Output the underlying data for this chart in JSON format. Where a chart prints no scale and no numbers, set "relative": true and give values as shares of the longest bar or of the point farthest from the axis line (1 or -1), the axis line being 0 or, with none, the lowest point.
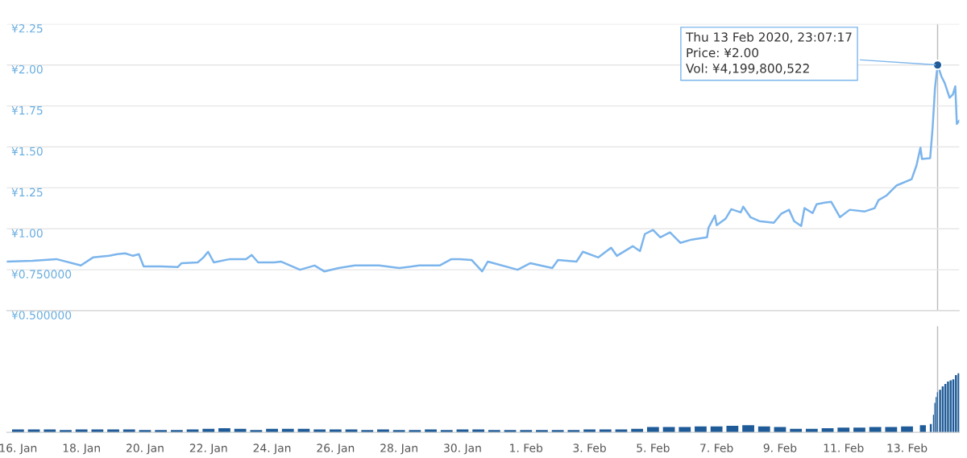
{
  "chart_data": [
    {
      "type": "line",
      "tick_labels": "y",
      "grid": "y",
      "marker": "none",
      "line_style": "solid",
      "xlim": [
        "2020-01-15T15:30",
        "2020-02-14T15:30"
      ],
      "ylim": [
        0.5,
        2.25
      ],
      "yticks": [
        {
          "value": 0.5,
          "label": "¥0.500000"
        },
        {
          "value": 0.75,
          "label": "¥0.750000"
        },
        {
          "value": 1.0,
          "label": "¥1.00"
        },
        {
          "value": 1.25,
          "label": "¥1.25"
        },
        {
          "value": 1.5,
          "label": "¥1.50"
        },
        {
          "value": 1.75,
          "label": "¥1.75"
        },
        {
          "value": 2.0,
          "label": "¥2.00"
        },
        {
          "value": 2.25,
          "label": "¥2.25"
        }
      ],
      "ref_lines": [
        {
          "axis": "x",
          "value": "2020-02-13T23:07",
          "label": null,
          "color": "#bbbbbb"
        }
      ],
      "annotations": [
        {
          "text": "Thu 13 Feb 2020, 23:07:17\nPrice: ¥2.00\nVol: ¥4,199,800,522",
          "x": "2020-02-13T23:07",
          "y": 2.0
        }
      ],
      "series": [
        {
          "color": "#7cb5ec",
          "x": [
            "2020-01-15T15:30",
            "2020-01-16T11:00",
            "2020-01-17T05:00",
            "2020-01-17T23:30",
            "2020-01-18T08:40",
            "2020-01-18T20:50",
            "2020-01-19T03:00",
            "2020-01-19T09:00",
            "2020-01-19T15:00",
            "2020-01-19T19:20",
            "2020-01-19T23:00",
            "2020-01-20T12:20",
            "2020-01-21T00:40",
            "2020-01-21T03:40",
            "2020-01-21T15:50",
            "2020-01-21T20:10",
            "2020-01-21T23:40",
            "2020-01-22T04:00",
            "2020-01-22T16:10",
            "2020-01-23T04:20",
            "2020-01-23T08:40",
            "2020-01-23T13:30",
            "2020-01-24T01:40",
            "2020-01-24T06:40",
            "2020-01-24T21:10",
            "2020-01-25T08:10",
            "2020-01-25T15:30",
            "2020-01-26T02:20",
            "2020-01-26T14:40",
            "2020-01-27T08:50",
            "2020-01-28T00:10",
            "2020-01-28T15:20",
            "2020-01-29T06:40",
            "2020-01-29T15:40",
            "2020-01-29T21:50",
            "2020-01-30T06:50",
            "2020-01-30T14:50",
            "2020-01-30T19:10",
            "2020-01-31T17:40",
            "2020-02-01T03:20",
            "2020-02-01T19:50",
            "2020-02-02T00:10",
            "2020-02-02T14:10",
            "2020-02-02T19:00",
            "2020-02-03T06:40",
            "2020-02-03T16:20",
            "2020-02-03T20:40",
            "2020-02-04T08:40",
            "2020-02-04T14:10",
            "2020-02-04T17:50",
            "2020-02-05T00:00",
            "2020-02-05T05:30",
            "2020-02-05T12:50",
            "2020-02-05T20:40",
            "2020-02-06T05:10",
            "2020-02-06T16:50",
            "2020-02-06T18:00",
            "2020-02-06T22:50",
            "2020-02-07T00:10",
            "2020-02-07T06:50",
            "2020-02-07T11:10",
            "2020-02-07T18:20",
            "2020-02-07T20:10",
            "2020-02-08T01:40",
            "2020-02-08T08:20",
            "2020-02-08T19:20",
            "2020-02-09T00:50",
            "2020-02-09T06:50",
            "2020-02-09T10:40",
            "2020-02-09T16:00",
            "2020-02-09T18:30",
            "2020-02-10T00:40",
            "2020-02-10T03:40",
            "2020-02-10T09:40",
            "2020-02-10T14:40",
            "2020-02-10T21:20",
            "2020-02-11T04:40",
            "2020-02-11T16:10",
            "2020-02-11T23:30",
            "2020-02-12T02:30",
            "2020-02-12T08:40",
            "2020-02-12T16:00",
            "2020-02-13T03:30",
            "2020-02-13T07:10",
            "2020-02-13T10:10",
            "2020-02-13T11:20",
            "2020-02-13T17:30",
            "2020-02-13T19:20",
            "2020-02-13T21:10",
            "2020-02-13T23:07",
            "2020-02-14T02:00",
            "2020-02-14T04:30",
            "2020-02-14T08:10",
            "2020-02-14T10:40",
            "2020-02-14T12:30",
            "2020-02-14T13:40",
            "2020-02-14T15:30"
          ],
          "values": [
            0.8,
            0.805,
            0.815,
            0.776,
            0.825,
            0.835,
            0.845,
            0.85,
            0.835,
            0.845,
            0.77,
            0.77,
            0.766,
            0.79,
            0.795,
            0.825,
            0.86,
            0.795,
            0.815,
            0.815,
            0.84,
            0.795,
            0.795,
            0.8,
            0.75,
            0.776,
            0.74,
            0.76,
            0.776,
            0.776,
            0.76,
            0.776,
            0.776,
            0.815,
            0.815,
            0.81,
            0.74,
            0.8,
            0.75,
            0.79,
            0.76,
            0.81,
            0.8,
            0.86,
            0.825,
            0.884,
            0.835,
            0.894,
            0.864,
            0.968,
            0.993,
            0.948,
            0.978,
            0.914,
            0.934,
            0.948,
            1.007,
            1.081,
            1.022,
            1.061,
            1.12,
            1.1,
            1.135,
            1.071,
            1.047,
            1.037,
            1.091,
            1.116,
            1.047,
            1.017,
            1.126,
            1.096,
            1.15,
            1.16,
            1.165,
            1.071,
            1.116,
            1.106,
            1.126,
            1.175,
            1.204,
            1.264,
            1.303,
            1.387,
            1.495,
            1.426,
            1.431,
            1.613,
            1.86,
            2.0,
            1.93,
            1.89,
            1.8,
            1.82,
            1.87,
            1.64,
            1.66
          ]
        }
      ]
    },
    {
      "type": "bar",
      "relative": true,
      "tick_labels": "x",
      "grid": false,
      "xlim": [
        "2020-01-15T15:30",
        "2020-02-14T15:30"
      ],
      "xticks": [
        {
          "value": "2020-01-16",
          "label": "16. Jan"
        },
        {
          "value": "2020-01-18",
          "label": "18. Jan"
        },
        {
          "value": "2020-01-20",
          "label": "20. Jan"
        },
        {
          "value": "2020-01-22",
          "label": "22. Jan"
        },
        {
          "value": "2020-01-24",
          "label": "24. Jan"
        },
        {
          "value": "2020-01-26",
          "label": "26. Jan"
        },
        {
          "value": "2020-01-28",
          "label": "28. Jan"
        },
        {
          "value": "2020-01-30",
          "label": "30. Jan"
        },
        {
          "value": "2020-02-01",
          "label": "1. Feb"
        },
        {
          "value": "2020-02-03",
          "label": "3. Feb"
        },
        {
          "value": "2020-02-05",
          "label": "5. Feb"
        },
        {
          "value": "2020-02-07",
          "label": "7. Feb"
        },
        {
          "value": "2020-02-09",
          "label": "9. Feb"
        },
        {
          "value": "2020-02-11",
          "label": "11. Feb"
        },
        {
          "value": "2020-02-13",
          "label": "13. Feb"
        }
      ],
      "ref_lines": [
        {
          "axis": "x",
          "value": "2020-02-13T23:07",
          "label": null,
          "color": "#bbbbbb"
        }
      ],
      "series": [
        {
          "color": "#1f5b98",
          "x": [
            "2020-01-16T00:00",
            "2020-01-16T12:00",
            "2020-01-17T00:00",
            "2020-01-17T12:00",
            "2020-01-18T00:00",
            "2020-01-18T12:00",
            "2020-01-19T00:00",
            "2020-01-19T12:00",
            "2020-01-20T00:00",
            "2020-01-20T12:00",
            "2020-01-21T00:00",
            "2020-01-21T12:00",
            "2020-01-22T00:00",
            "2020-01-22T12:00",
            "2020-01-23T00:00",
            "2020-01-23T12:00",
            "2020-01-24T00:00",
            "2020-01-24T12:00",
            "2020-01-25T00:00",
            "2020-01-25T12:00",
            "2020-01-26T00:00",
            "2020-01-26T12:00",
            "2020-01-27T00:00",
            "2020-01-27T12:00",
            "2020-01-28T00:00",
            "2020-01-28T12:00",
            "2020-01-29T00:00",
            "2020-01-29T12:00",
            "2020-01-30T00:00",
            "2020-01-30T12:00",
            "2020-01-31T00:00",
            "2020-01-31T12:00",
            "2020-02-01T00:00",
            "2020-02-01T12:00",
            "2020-02-02T00:00",
            "2020-02-02T12:00",
            "2020-02-03T00:00",
            "2020-02-03T12:00",
            "2020-02-04T00:00",
            "2020-02-04T12:00",
            "2020-02-05T00:00",
            "2020-02-05T12:00",
            "2020-02-06T00:00",
            "2020-02-06T12:00",
            "2020-02-07T00:00",
            "2020-02-07T12:00",
            "2020-02-08T00:00",
            "2020-02-08T12:00",
            "2020-02-09T00:00",
            "2020-02-09T12:00",
            "2020-02-10T00:00",
            "2020-02-10T12:00",
            "2020-02-11T00:00",
            "2020-02-11T12:00",
            "2020-02-12T00:00",
            "2020-02-12T12:00",
            "2020-02-13T00:00",
            "2020-02-13T12:00",
            "2020-02-13T18:00",
            "2020-02-13T20:00",
            "2020-02-13T21:00",
            "2020-02-13T22:00",
            "2020-02-13T23:00",
            "2020-02-14T01:00",
            "2020-02-14T03:00",
            "2020-02-14T05:00",
            "2020-02-14T07:00",
            "2020-02-14T09:00",
            "2020-02-14T11:00",
            "2020-02-14T13:00",
            "2020-02-14T15:00"
          ],
          "values": [
            0.05,
            0.05,
            0.05,
            0.04,
            0.05,
            0.05,
            0.05,
            0.05,
            0.04,
            0.04,
            0.04,
            0.05,
            0.06,
            0.07,
            0.06,
            0.04,
            0.06,
            0.06,
            0.06,
            0.05,
            0.05,
            0.05,
            0.04,
            0.05,
            0.04,
            0.04,
            0.05,
            0.04,
            0.05,
            0.05,
            0.04,
            0.04,
            0.04,
            0.04,
            0.04,
            0.04,
            0.05,
            0.05,
            0.05,
            0.06,
            0.09,
            0.09,
            0.09,
            0.1,
            0.1,
            0.11,
            0.12,
            0.1,
            0.09,
            0.06,
            0.06,
            0.07,
            0.08,
            0.08,
            0.09,
            0.09,
            0.1,
            0.12,
            0.14,
            0.3,
            0.5,
            0.6,
            0.68,
            0.72,
            0.78,
            0.82,
            0.86,
            0.88,
            0.9,
            0.97,
            1.0
          ]
        }
      ]
    }
  ]
}
